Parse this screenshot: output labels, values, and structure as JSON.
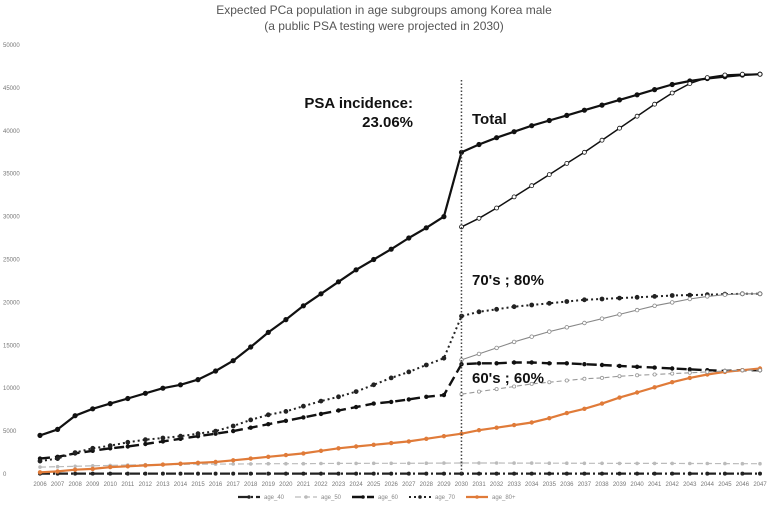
{
  "chart_data": {
    "type": "line",
    "title": "Expected PCa population in age subgroups among Korea male",
    "subtitle": "(a public PSA testing were projected in 2030)",
    "xlabel": "",
    "ylabel": "",
    "ylim": [
      0,
      50000
    ],
    "yticks": [
      "0",
      "5000",
      "10000",
      "15000",
      "20000",
      "25000",
      "30000",
      "35000",
      "40000",
      "45000",
      "50000"
    ],
    "x": [
      "2006",
      "2007",
      "2008",
      "2009",
      "2010",
      "2011",
      "2012",
      "2013",
      "2014",
      "2015",
      "2016",
      "2017",
      "2018",
      "2019",
      "2020",
      "2021",
      "2022",
      "2023",
      "2024",
      "2025",
      "2026",
      "2027",
      "2028",
      "2029",
      "2030",
      "2031",
      "2032",
      "2033",
      "2034",
      "2035",
      "2036",
      "2037",
      "2038",
      "2039",
      "2040",
      "2041",
      "2042",
      "2043",
      "2044",
      "2045",
      "2046",
      "2047"
    ],
    "grid": false,
    "legend_position": "bottom",
    "vline": {
      "x": "2030"
    },
    "annotations": [
      {
        "lines": [
          "PSA incidence:",
          "23.06%"
        ]
      },
      {
        "lines": [
          "Total"
        ]
      },
      {
        "lines": [
          "70's ; 80%"
        ]
      },
      {
        "lines": [
          "60's ; 60%"
        ]
      }
    ],
    "series": [
      {
        "name": "age_40",
        "style": "dash-dot",
        "color": "#222222",
        "values": [
          50,
          50,
          50,
          50,
          50,
          50,
          50,
          50,
          50,
          50,
          50,
          50,
          50,
          50,
          50,
          50,
          50,
          50,
          50,
          50,
          50,
          50,
          50,
          50,
          50,
          50,
          50,
          50,
          50,
          50,
          50,
          50,
          50,
          50,
          50,
          50,
          50,
          50,
          50,
          50,
          50,
          50
        ]
      },
      {
        "name": "age_50",
        "style": "dash",
        "color": "#bbbbbb",
        "values": [
          800,
          850,
          900,
          950,
          1000,
          1050,
          1080,
          1100,
          1120,
          1150,
          1150,
          1170,
          1180,
          1200,
          1200,
          1200,
          1220,
          1230,
          1240,
          1250,
          1250,
          1250,
          1260,
          1270,
          1280,
          1280,
          1280,
          1270,
          1270,
          1260,
          1260,
          1250,
          1250,
          1240,
          1240,
          1230,
          1230,
          1220,
          1220,
          1210,
          1200,
          1200
        ]
      },
      {
        "name": "age_60",
        "style": "long-dash",
        "color": "#111111",
        "values": [
          1800,
          2000,
          2400,
          2700,
          3000,
          3200,
          3500,
          3800,
          4100,
          4400,
          4700,
          5000,
          5400,
          5800,
          6200,
          6600,
          7000,
          7400,
          7800,
          8200,
          8400,
          8700,
          9000,
          9200,
          12800,
          12900,
          12900,
          13000,
          13000,
          12900,
          12900,
          12800,
          12700,
          12600,
          12500,
          12400,
          12300,
          12200,
          12100,
          12000,
          12100,
          12100
        ]
      },
      {
        "name": "age_70",
        "style": "dotted",
        "color": "#222222",
        "values": [
          1500,
          1800,
          2500,
          3000,
          3300,
          3700,
          4000,
          4200,
          4400,
          4700,
          5000,
          5600,
          6300,
          6900,
          7300,
          7900,
          8500,
          9000,
          9600,
          10400,
          11200,
          11900,
          12700,
          13500,
          18400,
          18900,
          19200,
          19500,
          19700,
          19900,
          20100,
          20300,
          20400,
          20500,
          20600,
          20700,
          20800,
          20850,
          20900,
          20950,
          21000,
          21000
        ]
      },
      {
        "name": "age_80+",
        "style": "solid",
        "color": "#e07b39",
        "values": [
          200,
          300,
          500,
          600,
          800,
          900,
          1000,
          1100,
          1200,
          1300,
          1400,
          1600,
          1800,
          2000,
          2200,
          2400,
          2700,
          3000,
          3200,
          3400,
          3600,
          3800,
          4100,
          4400,
          4700,
          5100,
          5400,
          5700,
          6000,
          6500,
          7100,
          7600,
          8200,
          8900,
          9500,
          10100,
          10700,
          11200,
          11600,
          11900,
          12100,
          12300
        ]
      },
      {
        "name": "Total",
        "legend": false,
        "style": "solid-markers",
        "color": "#111111",
        "values": [
          4500,
          5200,
          6800,
          7600,
          8200,
          8800,
          9400,
          10000,
          10400,
          11000,
          12000,
          13200,
          14800,
          16500,
          18000,
          19600,
          21000,
          22400,
          23800,
          25000,
          26200,
          27500,
          28700,
          30000,
          37500,
          38400,
          39200,
          39900,
          40600,
          41200,
          41800,
          42400,
          43000,
          43600,
          44200,
          44800,
          45400,
          45800,
          46100,
          46300,
          46500,
          46600
        ]
      },
      {
        "name": "Total (no PSA)",
        "legend": false,
        "style": "solid-open-markers",
        "color": "#111111",
        "values": [
          null,
          null,
          null,
          null,
          null,
          null,
          null,
          null,
          null,
          null,
          null,
          null,
          null,
          null,
          null,
          null,
          null,
          null,
          null,
          null,
          null,
          null,
          null,
          null,
          28800,
          29800,
          31000,
          32300,
          33600,
          34900,
          36200,
          37500,
          38900,
          40300,
          41700,
          43100,
          44400,
          45500,
          46200,
          46500,
          46600,
          46600
        ]
      },
      {
        "name": "70's (no PSA)",
        "legend": false,
        "style": "thin-open-markers",
        "color": "#888888",
        "values": [
          null,
          null,
          null,
          null,
          null,
          null,
          null,
          null,
          null,
          null,
          null,
          null,
          null,
          null,
          null,
          null,
          null,
          null,
          null,
          null,
          null,
          null,
          null,
          null,
          13300,
          14000,
          14700,
          15400,
          16000,
          16600,
          17100,
          17600,
          18100,
          18600,
          19100,
          19600,
          20000,
          20400,
          20700,
          20900,
          21000,
          21000
        ]
      },
      {
        "name": "60's (no PSA)",
        "legend": false,
        "style": "thin-dash",
        "color": "#999999",
        "values": [
          null,
          null,
          null,
          null,
          null,
          null,
          null,
          null,
          null,
          null,
          null,
          null,
          null,
          null,
          null,
          null,
          null,
          null,
          null,
          null,
          null,
          null,
          null,
          null,
          9300,
          9600,
          9900,
          10200,
          10500,
          10700,
          10900,
          11100,
          11200,
          11400,
          11500,
          11600,
          11700,
          11800,
          11900,
          12000,
          12100,
          12100
        ]
      }
    ]
  }
}
